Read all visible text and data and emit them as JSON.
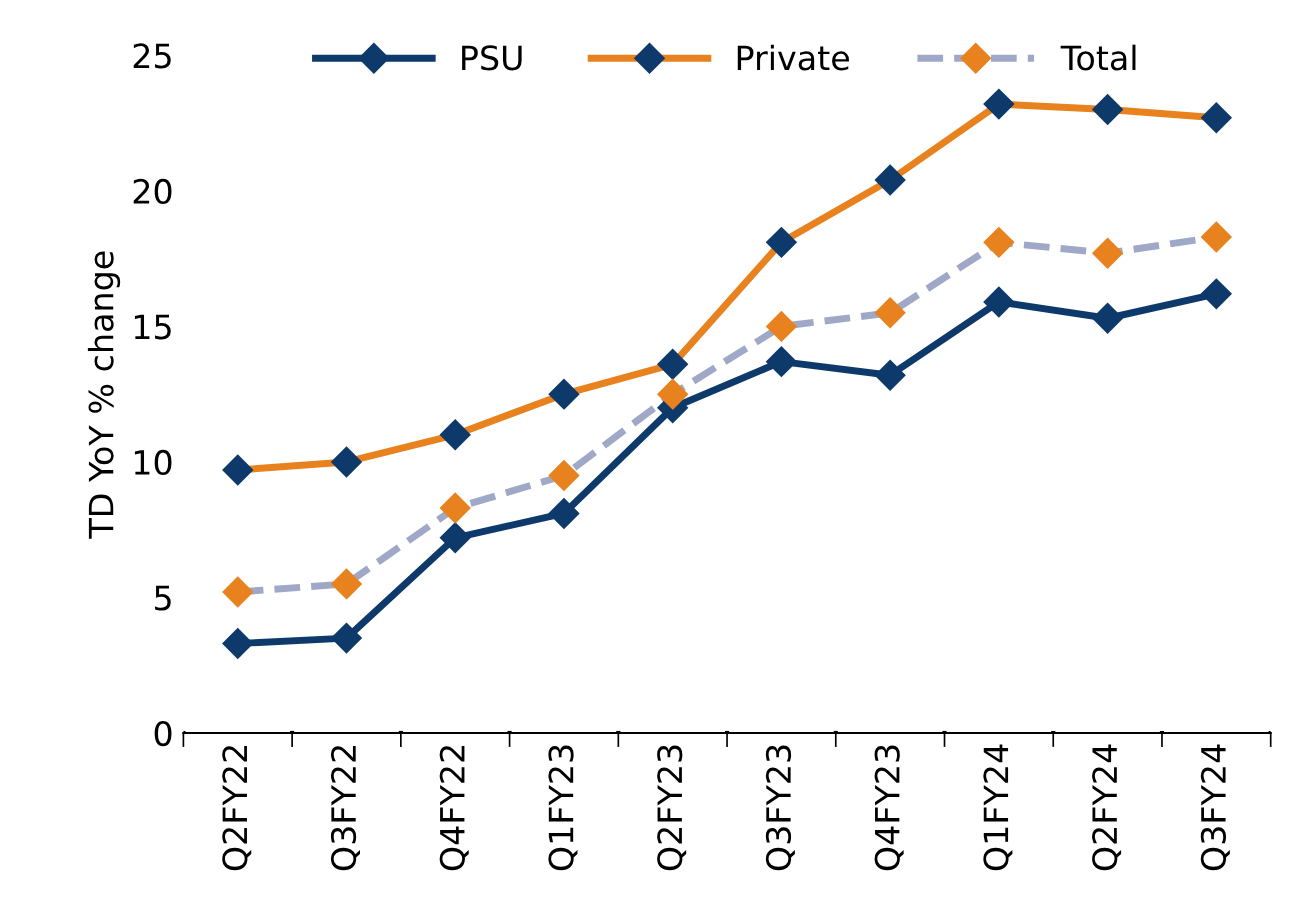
{
  "chart_data": {
    "type": "line",
    "ylabel": "TD YoY % change",
    "categories": [
      "Q2FY22",
      "Q3FY22",
      "Q4FY22",
      "Q1FY23",
      "Q2FY23",
      "Q3FY23",
      "Q4FY23",
      "Q1FY24",
      "Q2FY24",
      "Q3FY24"
    ],
    "series": [
      {
        "name": "PSU",
        "color": "#0e3a6b",
        "line_style": "solid",
        "colors": [
          "#0e3a6b",
          "#0e3a6b",
          "#0e3a6b",
          "#0e3a6b",
          "#0e3a6b",
          "#0e3a6b",
          "#0e3a6b",
          "#0e3a6b",
          "#0e3a6b",
          "#0e3a6b"
        ],
        "values": [
          3.3,
          3.5,
          7.2,
          8.1,
          12.0,
          13.7,
          13.2,
          15.9,
          15.3,
          16.2
        ]
      },
      {
        "name": "Private",
        "color": "#e8821e",
        "line_style": "solid",
        "colors": [
          "#0e3a6b",
          "#0e3a6b",
          "#0e3a6b",
          "#0e3a6b",
          "#0e3a6b",
          "#0e3a6b",
          "#0e3a6b",
          "#0e3a6b",
          "#0e3a6b",
          "#0e3a6b"
        ],
        "values": [
          9.7,
          10.0,
          11.0,
          12.5,
          13.6,
          18.1,
          20.4,
          23.2,
          23.0,
          22.7
        ]
      },
      {
        "name": "Total",
        "color": "#a0a8c8",
        "line_style": "dashed",
        "colors": [
          "#e8821e",
          "#e8821e",
          "#e8821e",
          "#e8821e",
          "#e8821e",
          "#e8821e",
          "#e8821e",
          "#e8821e",
          "#e8821e",
          "#e8821e"
        ],
        "values": [
          5.2,
          5.5,
          8.3,
          9.5,
          12.5,
          15.0,
          15.5,
          18.1,
          17.7,
          18.3
        ]
      }
    ],
    "ylim": [
      0,
      25
    ],
    "yticks": [
      0,
      5,
      10,
      15,
      20,
      25
    ],
    "grid": false,
    "legend": "top",
    "marker": "diamond"
  }
}
